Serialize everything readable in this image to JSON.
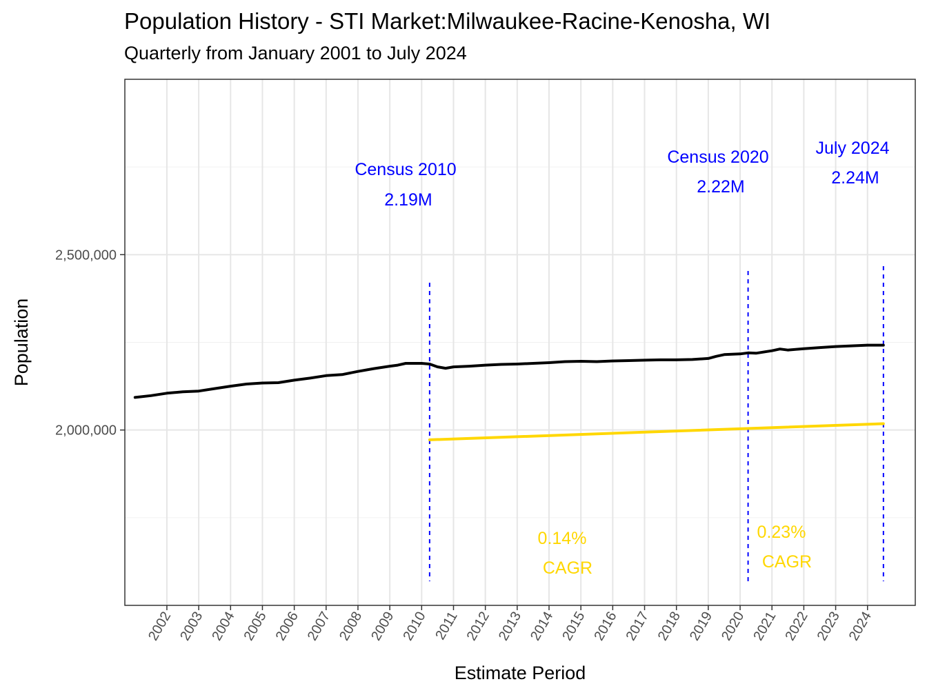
{
  "chart_data": {
    "type": "line",
    "title": "Population History - STI Market:Milwaukee-Racine-Kenosha, WI",
    "subtitle": "Quarterly from January 2001 to July 2024",
    "xlabel": "Estimate Period",
    "ylabel": "Population",
    "x_tick_labels": [
      "2002",
      "2003",
      "2004",
      "2005",
      "2006",
      "2007",
      "2008",
      "2009",
      "2010",
      "2011",
      "2012",
      "2013",
      "2014",
      "2015",
      "2016",
      "2017",
      "2018",
      "2019",
      "2020",
      "2021",
      "2022",
      "2023",
      "2024"
    ],
    "y_ticks": [
      2000000,
      2500000
    ],
    "y_tick_labels": [
      "2,000,000",
      "2,500,000"
    ],
    "ylim": [
      1500000,
      3000000
    ],
    "xlim": [
      2000.68,
      2025.5
    ],
    "grid": true,
    "series": [
      {
        "color": "#000000",
        "x": [
          2001.0,
          2001.5,
          2002.0,
          2002.5,
          2003.0,
          2003.5,
          2004.0,
          2004.5,
          2005.0,
          2005.5,
          2006.0,
          2006.5,
          2007.0,
          2007.5,
          2008.0,
          2008.5,
          2009.0,
          2009.25,
          2009.5,
          2010.0,
          2010.25,
          2010.5,
          2010.75,
          2011.0,
          2011.5,
          2012.0,
          2012.5,
          2013.0,
          2013.5,
          2014.0,
          2014.5,
          2015.0,
          2015.5,
          2016.0,
          2016.5,
          2017.0,
          2017.5,
          2018.0,
          2018.5,
          2019.0,
          2019.25,
          2019.5,
          2020.0,
          2020.25,
          2020.5,
          2021.0,
          2021.25,
          2021.5,
          2022.0,
          2022.5,
          2023.0,
          2023.5,
          2024.0,
          2024.5
        ],
        "values": [
          2093000,
          2098000,
          2105000,
          2109000,
          2111000,
          2118000,
          2125000,
          2131000,
          2134000,
          2135000,
          2142000,
          2148000,
          2155000,
          2158000,
          2167000,
          2175000,
          2182000,
          2185000,
          2190000,
          2190000,
          2188000,
          2180000,
          2176000,
          2180000,
          2182000,
          2185000,
          2187000,
          2188000,
          2190000,
          2192000,
          2195000,
          2196000,
          2195000,
          2197000,
          2198000,
          2199000,
          2200000,
          2200000,
          2201000,
          2204000,
          2210000,
          2215000,
          2217000,
          2220000,
          2219000,
          2226000,
          2231000,
          2228000,
          2232000,
          2235000,
          2238000,
          2240000,
          2242000,
          2242000
        ]
      },
      {
        "color": "#FFD700",
        "x": [
          2010.25,
          2024.5
        ],
        "values": [
          1972000,
          2018000
        ]
      }
    ],
    "reference_lines": [
      {
        "x": 2010.25,
        "color": "#0000FF",
        "style": "dashed"
      },
      {
        "x": 2020.25,
        "color": "#0000FF",
        "style": "dashed"
      },
      {
        "x": 2024.5,
        "color": "#0000FF",
        "style": "dashed"
      }
    ],
    "annotations": [
      {
        "line1": "Census 2010",
        "line2": "2.19M",
        "color": "#0000FF"
      },
      {
        "line1": "Census 2020",
        "line2": "2.22M",
        "color": "#0000FF"
      },
      {
        "line1": "July 2024",
        "line2": "2.24M",
        "color": "#0000FF"
      },
      {
        "line1": "0.14%",
        "line2": "CAGR",
        "color": "#FFD700"
      },
      {
        "line1": "0.23%",
        "line2": "CAGR",
        "color": "#FFD700"
      }
    ]
  }
}
